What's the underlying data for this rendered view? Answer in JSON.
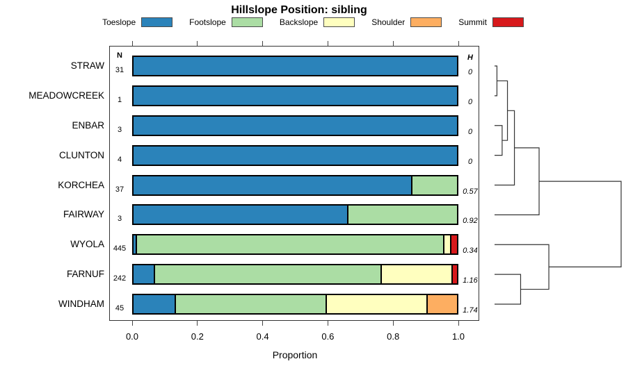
{
  "title": "Hillslope Position: sibling",
  "legend": [
    {
      "label": "Toeslope",
      "color": "#2B83BA"
    },
    {
      "label": "Footslope",
      "color": "#ABDDA4"
    },
    {
      "label": "Backslope",
      "color": "#FFFFBF"
    },
    {
      "label": "Shoulder",
      "color": "#FDAE61"
    },
    {
      "label": "Summit",
      "color": "#D7191C"
    }
  ],
  "columns": {
    "n_header": "N",
    "h_header": "H"
  },
  "axis": {
    "label": "Proportion",
    "ticks": [
      "0.0",
      "0.2",
      "0.4",
      "0.6",
      "0.8",
      "1.0"
    ],
    "range": [
      0,
      1
    ]
  },
  "chart_data": {
    "type": "bar",
    "orientation": "horizontal-stacked",
    "title": "Hillslope Position: sibling",
    "xlabel": "Proportion",
    "xlim": [
      0,
      1
    ],
    "classes": [
      "Toeslope",
      "Footslope",
      "Backslope",
      "Shoulder",
      "Summit"
    ],
    "colors": [
      "#2B83BA",
      "#ABDDA4",
      "#FFFFBF",
      "#FDAE61",
      "#D7191C"
    ],
    "rows": [
      {
        "name": "STRAW",
        "n": "31",
        "h": "0",
        "segments": [
          {
            "c": "Toeslope",
            "p": 1.0
          }
        ]
      },
      {
        "name": "MEADOWCREEK",
        "n": "1",
        "h": "0",
        "segments": [
          {
            "c": "Toeslope",
            "p": 1.0
          }
        ]
      },
      {
        "name": "ENBAR",
        "n": "3",
        "h": "0",
        "segments": [
          {
            "c": "Toeslope",
            "p": 1.0
          }
        ]
      },
      {
        "name": "CLUNTON",
        "n": "4",
        "h": "0",
        "segments": [
          {
            "c": "Toeslope",
            "p": 1.0
          }
        ]
      },
      {
        "name": "KORCHEA",
        "n": "37",
        "h": "0.57",
        "segments": [
          {
            "c": "Toeslope",
            "p": 0.862
          },
          {
            "c": "Footslope",
            "p": 0.138
          }
        ]
      },
      {
        "name": "FAIRWAY",
        "n": "3",
        "h": "0.92",
        "segments": [
          {
            "c": "Toeslope",
            "p": 0.664
          },
          {
            "c": "Footslope",
            "p": 0.336
          }
        ]
      },
      {
        "name": "WYOLA",
        "n": "445",
        "h": "0.34",
        "segments": [
          {
            "c": "Toeslope",
            "p": 0.011
          },
          {
            "c": "Footslope",
            "p": 0.95
          },
          {
            "c": "Backslope",
            "p": 0.021
          },
          {
            "c": "Summit",
            "p": 0.018
          }
        ]
      },
      {
        "name": "FARNUF",
        "n": "242",
        "h": "1.16",
        "segments": [
          {
            "c": "Toeslope",
            "p": 0.066
          },
          {
            "c": "Footslope",
            "p": 0.701
          },
          {
            "c": "Backslope",
            "p": 0.221
          },
          {
            "c": "Summit",
            "p": 0.012
          }
        ]
      },
      {
        "name": "WINDHAM",
        "n": "45",
        "h": "1.74",
        "segments": [
          {
            "c": "Toeslope",
            "p": 0.131
          },
          {
            "c": "Footslope",
            "p": 0.467
          },
          {
            "c": "Backslope",
            "p": 0.311
          },
          {
            "c": "Shoulder",
            "p": 0.091
          }
        ]
      }
    ],
    "dendrogram": {
      "merges": [
        {
          "id": "m1",
          "a": "STRAW",
          "b": "MEADOWCREEK",
          "h": 0.019
        },
        {
          "id": "m2",
          "a": "ENBAR",
          "b": "CLUNTON",
          "h": 0.06
        },
        {
          "id": "m3",
          "a": "m1",
          "b": "m2",
          "h": 0.102
        },
        {
          "id": "m4",
          "a": "m3",
          "b": "KORCHEA",
          "h": 0.157
        },
        {
          "id": "m5",
          "a": "m4",
          "b": "FAIRWAY",
          "h": 0.352
        },
        {
          "id": "m6",
          "a": "FARNUF",
          "b": "WINDHAM",
          "h": 0.206
        },
        {
          "id": "m7",
          "a": "WYOLA",
          "b": "m6",
          "h": 0.429
        },
        {
          "id": "m8",
          "a": "m5",
          "b": "m7",
          "h": 1.0
        }
      ]
    }
  }
}
